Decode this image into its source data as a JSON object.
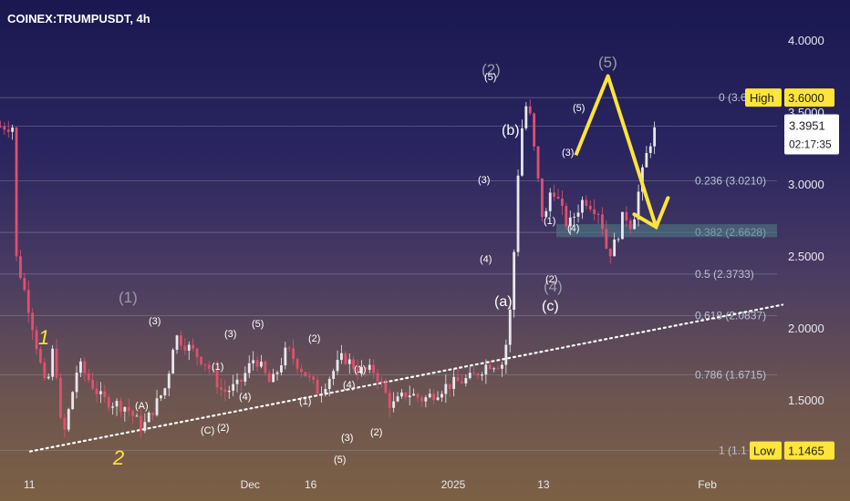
{
  "header": {
    "symbol_title": "COINEX:TRUMPUSDT, 4h"
  },
  "colors": {
    "up_candle": "#e8e8ee",
    "down_candle": "#e0506e",
    "fib_line": "#9aa3b5",
    "accent_yellow": "#ffe43a",
    "support_zone": "#4e7d86"
  },
  "price_axis": {
    "ticks": [
      "4.0000",
      "3.5000",
      "3.0000",
      "2.5000",
      "2.0000",
      "1.5000"
    ],
    "high_label": "High",
    "high_value": "3.6000",
    "low_label": "Low",
    "low_value": "1.1465",
    "current_price": "3.3951",
    "countdown": "02:17:35"
  },
  "time_axis": {
    "ticks": [
      "11",
      "Dec",
      "16",
      "2025",
      "13",
      "Feb"
    ]
  },
  "chart_data": {
    "type": "candlestick",
    "title": "COINEX:TRUMPUSDT, 4h",
    "ylim": [
      1.1,
      4.2
    ],
    "x_range": [
      "Nov 11",
      "Feb 2"
    ],
    "fib_levels": [
      {
        "ratio": "0",
        "price": 3.6,
        "label": "0 (3.6000)"
      },
      {
        "ratio": "0.236",
        "price": 3.021,
        "label": "0.236 (3.0210)"
      },
      {
        "ratio": "0.382",
        "price": 2.6628,
        "label": "0.382 (2.6628)"
      },
      {
        "ratio": "0.5",
        "price": 2.3733,
        "label": "0.5 (2.3733)"
      },
      {
        "ratio": "0.618",
        "price": 2.0837,
        "label": "0.618 (2.0837)"
      },
      {
        "ratio": "0.786",
        "price": 1.6715,
        "label": "0.786 (1.6715)"
      },
      {
        "ratio": "1",
        "price": 1.1465,
        "label": "1 (1.1465)"
      }
    ],
    "projection_path": [
      {
        "date": "Jan 17",
        "price": 3.2
      },
      {
        "date": "Jan 21",
        "price": 3.75
      },
      {
        "date": "Jan 27",
        "price": 2.7
      }
    ],
    "wave_labels": [
      "1",
      "2",
      "(1)",
      "(2)",
      "(3)",
      "(4)",
      "(5)",
      "(A)",
      "(B)",
      "(C)",
      "(a)",
      "(b)",
      "(c)"
    ]
  }
}
